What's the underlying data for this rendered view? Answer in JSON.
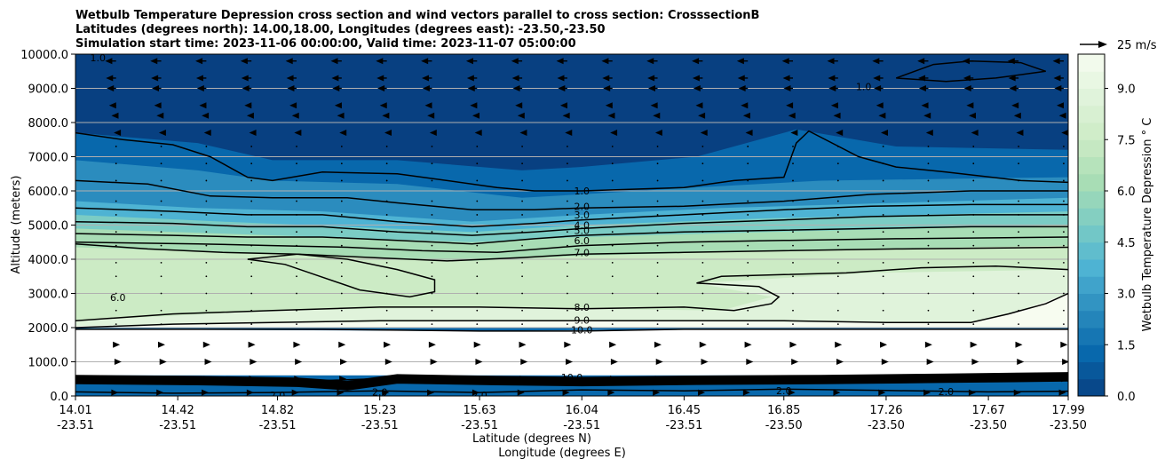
{
  "chart_data": {
    "type": "heatmap",
    "title_lines": [
      "Wetbulb Temperature Depression cross section and wind vectors parallel to cross section: CrosssectionB",
      "Latitudes (degrees north): 14.00,18.00, Longitudes (degrees east): -23.50,-23.50",
      "Simulation start time: 2023-11-06 00:00:00, Valid time: 2023-11-07 05:00:00"
    ],
    "xlabel_lines": [
      "Latitude (degrees N)",
      "Longitude (degrees E)"
    ],
    "ylabel": "Altitude (meters)",
    "colorbar_label": "Wetbulb Temperature Depression ° C",
    "quiver_key": "25 m/s",
    "x_ticks": [
      {
        "lat": "14.01",
        "lon": "-23.51",
        "value": 14.01
      },
      {
        "lat": "14.42",
        "lon": "-23.51",
        "value": 14.42
      },
      {
        "lat": "14.82",
        "lon": "-23.51",
        "value": 14.82
      },
      {
        "lat": "15.23",
        "lon": "-23.51",
        "value": 15.23
      },
      {
        "lat": "15.63",
        "lon": "-23.51",
        "value": 15.63
      },
      {
        "lat": "16.04",
        "lon": "-23.51",
        "value": 16.04
      },
      {
        "lat": "16.45",
        "lon": "-23.51",
        "value": 16.45
      },
      {
        "lat": "16.85",
        "lon": "-23.50",
        "value": 16.85
      },
      {
        "lat": "17.26",
        "lon": "-23.50",
        "value": 17.26
      },
      {
        "lat": "17.67",
        "lon": "-23.50",
        "value": 17.67
      },
      {
        "lat": "17.99",
        "lon": "-23.50",
        "value": 17.99
      }
    ],
    "xlim": [
      14.01,
      17.99
    ],
    "y_ticks": [
      {
        "label": "0.0",
        "value": 0
      },
      {
        "label": "1000.0",
        "value": 1000
      },
      {
        "label": "2000.0",
        "value": 2000
      },
      {
        "label": "3000.0",
        "value": 3000
      },
      {
        "label": "4000.0",
        "value": 4000
      },
      {
        "label": "5000.0",
        "value": 5000
      },
      {
        "label": "6000.0",
        "value": 6000
      },
      {
        "label": "7000.0",
        "value": 7000
      },
      {
        "label": "8000.0",
        "value": 8000
      },
      {
        "label": "9000.0",
        "value": 9000
      },
      {
        "label": "10000.0",
        "value": 10000
      }
    ],
    "ylim": [
      0,
      10000
    ],
    "colorbar_ticks": [
      {
        "label": "0.0",
        "value": 0
      },
      {
        "label": "1.5",
        "value": 1.5
      },
      {
        "label": "3.0",
        "value": 3
      },
      {
        "label": "4.5",
        "value": 4.5
      },
      {
        "label": "6.0",
        "value": 6
      },
      {
        "label": "7.5",
        "value": 7.5
      },
      {
        "label": "9.0",
        "value": 9
      }
    ],
    "colorbar_range": [
      0,
      10
    ],
    "colors": [
      "#084081",
      "#0868ac",
      "#2b8cbe",
      "#4eb3d3",
      "#7bccc4",
      "#a8ddb5",
      "#ccebc5",
      "#e0f3db",
      "#f7fcf0"
    ],
    "grid": "horizontal",
    "contour_labels": [
      {
        "text": "1.0",
        "x": 16.04,
        "y": 6000
      },
      {
        "text": "2.0",
        "x": 16.04,
        "y": 5550
      },
      {
        "text": "3.0",
        "x": 16.04,
        "y": 5300
      },
      {
        "text": "4.0",
        "x": 16.04,
        "y": 5000
      },
      {
        "text": "5.0",
        "x": 16.04,
        "y": 4850
      },
      {
        "text": "6.0",
        "x": 16.04,
        "y": 4550
      },
      {
        "text": "7.0",
        "x": 16.04,
        "y": 4200
      },
      {
        "text": "8.0",
        "x": 16.04,
        "y": 2600
      },
      {
        "text": "9.0",
        "x": 16.04,
        "y": 2220
      },
      {
        "text": "10.0",
        "x": 16.04,
        "y": 1930
      },
      {
        "text": "6.0",
        "x": 14.18,
        "y": 2880
      },
      {
        "text": "1.0",
        "x": 17.17,
        "y": 9050
      },
      {
        "text": "1.0",
        "x": 14.1,
        "y": 9900
      },
      {
        "text": "2.0",
        "x": 14.82,
        "y": 30
      },
      {
        "text": "2.0",
        "x": 15.23,
        "y": 120
      },
      {
        "text": "2.0",
        "x": 15.63,
        "y": 30
      },
      {
        "text": "2.0",
        "x": 16.85,
        "y": 160
      },
      {
        "text": "2.0",
        "x": 17.5,
        "y": 130
      },
      {
        "text": "10.0",
        "x": 16.0,
        "y": 550
      }
    ],
    "contour_lines": [
      {
        "level": 1,
        "points": [
          [
            14.01,
            7700
          ],
          [
            14.2,
            7500
          ],
          [
            14.4,
            7350
          ],
          [
            14.55,
            7000
          ],
          [
            14.7,
            6400
          ],
          [
            14.8,
            6300
          ],
          [
            15.0,
            6550
          ],
          [
            15.3,
            6500
          ],
          [
            15.5,
            6300
          ],
          [
            15.7,
            6100
          ],
          [
            15.85,
            6000
          ],
          [
            16.04,
            6000
          ],
          [
            16.45,
            6100
          ],
          [
            16.65,
            6300
          ],
          [
            16.85,
            6400
          ],
          [
            16.9,
            7400
          ],
          [
            16.95,
            7750
          ],
          [
            17.15,
            7000
          ],
          [
            17.3,
            6700
          ],
          [
            17.5,
            6550
          ],
          [
            17.8,
            6300
          ],
          [
            17.99,
            6250
          ]
        ]
      },
      {
        "level": 2,
        "points": [
          [
            14.01,
            6300
          ],
          [
            14.3,
            6200
          ],
          [
            14.55,
            5850
          ],
          [
            14.8,
            5800
          ],
          [
            15.1,
            5800
          ],
          [
            15.3,
            5650
          ],
          [
            15.6,
            5450
          ],
          [
            15.85,
            5450
          ],
          [
            16.04,
            5500
          ],
          [
            16.45,
            5550
          ],
          [
            16.85,
            5700
          ],
          [
            17.2,
            5900
          ],
          [
            17.6,
            6000
          ],
          [
            17.99,
            6000
          ]
        ]
      },
      {
        "level": 3,
        "points": [
          [
            14.01,
            5500
          ],
          [
            14.4,
            5400
          ],
          [
            14.7,
            5300
          ],
          [
            15.0,
            5300
          ],
          [
            15.3,
            5100
          ],
          [
            15.6,
            4950
          ],
          [
            15.85,
            5050
          ],
          [
            16.04,
            5150
          ],
          [
            16.45,
            5300
          ],
          [
            16.85,
            5450
          ],
          [
            17.2,
            5550
          ],
          [
            17.6,
            5600
          ],
          [
            17.99,
            5600
          ]
        ]
      },
      {
        "level": 4,
        "points": [
          [
            14.01,
            5100
          ],
          [
            14.4,
            5050
          ],
          [
            14.7,
            4950
          ],
          [
            15.0,
            4950
          ],
          [
            15.3,
            4800
          ],
          [
            15.6,
            4700
          ],
          [
            15.85,
            4800
          ],
          [
            16.04,
            4900
          ],
          [
            16.45,
            5050
          ],
          [
            16.85,
            5150
          ],
          [
            17.2,
            5250
          ],
          [
            17.6,
            5300
          ],
          [
            17.99,
            5300
          ]
        ]
      },
      {
        "level": 5,
        "points": [
          [
            14.01,
            4750
          ],
          [
            14.4,
            4700
          ],
          [
            14.7,
            4650
          ],
          [
            15.0,
            4650
          ],
          [
            15.3,
            4550
          ],
          [
            15.6,
            4450
          ],
          [
            15.85,
            4600
          ],
          [
            16.04,
            4700
          ],
          [
            16.45,
            4800
          ],
          [
            16.85,
            4850
          ],
          [
            17.2,
            4900
          ],
          [
            17.6,
            4950
          ],
          [
            17.99,
            4950
          ]
        ]
      },
      {
        "level": 6,
        "points": [
          [
            14.01,
            4500
          ],
          [
            14.5,
            4450
          ],
          [
            14.8,
            4400
          ],
          [
            15.1,
            4350
          ],
          [
            15.4,
            4250
          ],
          [
            15.7,
            4200
          ],
          [
            16.04,
            4400
          ],
          [
            16.45,
            4500
          ],
          [
            16.85,
            4550
          ],
          [
            17.3,
            4600
          ],
          [
            17.99,
            4650
          ]
        ]
      },
      {
        "level": 7,
        "points": [
          [
            14.01,
            4450
          ],
          [
            14.3,
            4300
          ],
          [
            14.6,
            4200
          ],
          [
            14.9,
            4150
          ],
          [
            15.2,
            4050
          ],
          [
            15.5,
            3950
          ],
          [
            15.8,
            4050
          ],
          [
            16.04,
            4150
          ],
          [
            16.45,
            4200
          ],
          [
            16.85,
            4250
          ],
          [
            17.3,
            4300
          ],
          [
            17.99,
            4350
          ]
        ]
      },
      {
        "level": 8,
        "points": [
          [
            14.01,
            2200
          ],
          [
            14.4,
            2400
          ],
          [
            14.8,
            2500
          ],
          [
            15.23,
            2600
          ],
          [
            15.63,
            2600
          ],
          [
            16.04,
            2550
          ],
          [
            16.45,
            2600
          ],
          [
            16.65,
            2500
          ],
          [
            16.8,
            2700
          ],
          [
            16.83,
            2900
          ],
          [
            16.75,
            3200
          ],
          [
            16.5,
            3300
          ],
          [
            16.6,
            3500
          ],
          [
            16.85,
            3550
          ],
          [
            17.1,
            3600
          ],
          [
            17.4,
            3750
          ],
          [
            17.7,
            3800
          ],
          [
            17.99,
            3700
          ]
        ]
      },
      {
        "level": 8,
        "points": [
          [
            14.7,
            4000
          ],
          [
            14.9,
            4150
          ],
          [
            15.1,
            4000
          ],
          [
            15.3,
            3700
          ],
          [
            15.45,
            3400
          ],
          [
            15.45,
            3050
          ],
          [
            15.35,
            2900
          ],
          [
            15.15,
            3100
          ],
          [
            14.95,
            3600
          ],
          [
            14.85,
            3850
          ],
          [
            14.7,
            4000
          ]
        ]
      },
      {
        "level": 9,
        "points": [
          [
            14.01,
            2000
          ],
          [
            14.4,
            2100
          ],
          [
            14.8,
            2150
          ],
          [
            15.23,
            2200
          ],
          [
            15.63,
            2200
          ],
          [
            16.04,
            2200
          ],
          [
            16.45,
            2200
          ],
          [
            16.85,
            2200
          ],
          [
            17.26,
            2150
          ],
          [
            17.6,
            2150
          ],
          [
            17.75,
            2400
          ],
          [
            17.9,
            2700
          ],
          [
            17.99,
            3000
          ]
        ]
      },
      {
        "level": 10,
        "points": [
          [
            14.01,
            1950
          ],
          [
            14.5,
            1950
          ],
          [
            15.0,
            1950
          ],
          [
            15.63,
            1900
          ],
          [
            16.04,
            1900
          ],
          [
            16.45,
            1950
          ],
          [
            17.0,
            1950
          ],
          [
            17.5,
            1950
          ],
          [
            17.99,
            1950
          ]
        ]
      },
      {
        "level": 1,
        "points": [
          [
            17.3,
            9300
          ],
          [
            17.45,
            9700
          ],
          [
            17.6,
            9800
          ],
          [
            17.8,
            9750
          ],
          [
            17.9,
            9500
          ],
          [
            17.7,
            9300
          ],
          [
            17.5,
            9200
          ],
          [
            17.3,
            9300
          ]
        ]
      },
      {
        "level": 10,
        "points": [
          [
            14.01,
            400
          ],
          [
            14.6,
            450
          ],
          [
            15.0,
            450
          ],
          [
            15.4,
            550
          ],
          [
            15.8,
            550
          ],
          [
            16.04,
            500
          ],
          [
            16.6,
            500
          ],
          [
            17.2,
            550
          ],
          [
            17.99,
            600
          ]
        ]
      },
      {
        "level": 2,
        "points": [
          [
            14.01,
            120
          ],
          [
            14.4,
            80
          ],
          [
            14.8,
            100
          ],
          [
            15.23,
            150
          ],
          [
            15.63,
            100
          ],
          [
            16.04,
            180
          ],
          [
            16.45,
            150
          ],
          [
            16.85,
            200
          ],
          [
            17.26,
            160
          ],
          [
            17.67,
            120
          ],
          [
            17.99,
            140
          ]
        ]
      }
    ],
    "wind_rows": [
      {
        "z": 9800,
        "u": -14
      },
      {
        "z": 9300,
        "u": -13
      },
      {
        "z": 9000,
        "u": -12
      },
      {
        "z": 8500,
        "u": -9
      },
      {
        "z": 8200,
        "u": -6
      },
      {
        "z": 7700,
        "u": -3
      },
      {
        "z": 7300,
        "u": -1.5
      },
      {
        "z": 6800,
        "u": -1
      },
      {
        "z": 6300,
        "u": -0.8
      },
      {
        "z": 5700,
        "u": -0.6
      },
      {
        "z": 5300,
        "u": -0.5
      },
      {
        "z": 4800,
        "u": -0.4
      },
      {
        "z": 4400,
        "u": -0.3
      },
      {
        "z": 3900,
        "u": 0.3
      },
      {
        "z": 3500,
        "u": 0.3
      },
      {
        "z": 3000,
        "u": 0.3
      },
      {
        "z": 2500,
        "u": 0.8
      },
      {
        "z": 2100,
        "u": 2
      },
      {
        "z": 1500,
        "u": 5
      },
      {
        "z": 1000,
        "u": 7
      },
      {
        "z": 500,
        "u": 6
      },
      {
        "z": 100,
        "u": 3
      }
    ]
  }
}
